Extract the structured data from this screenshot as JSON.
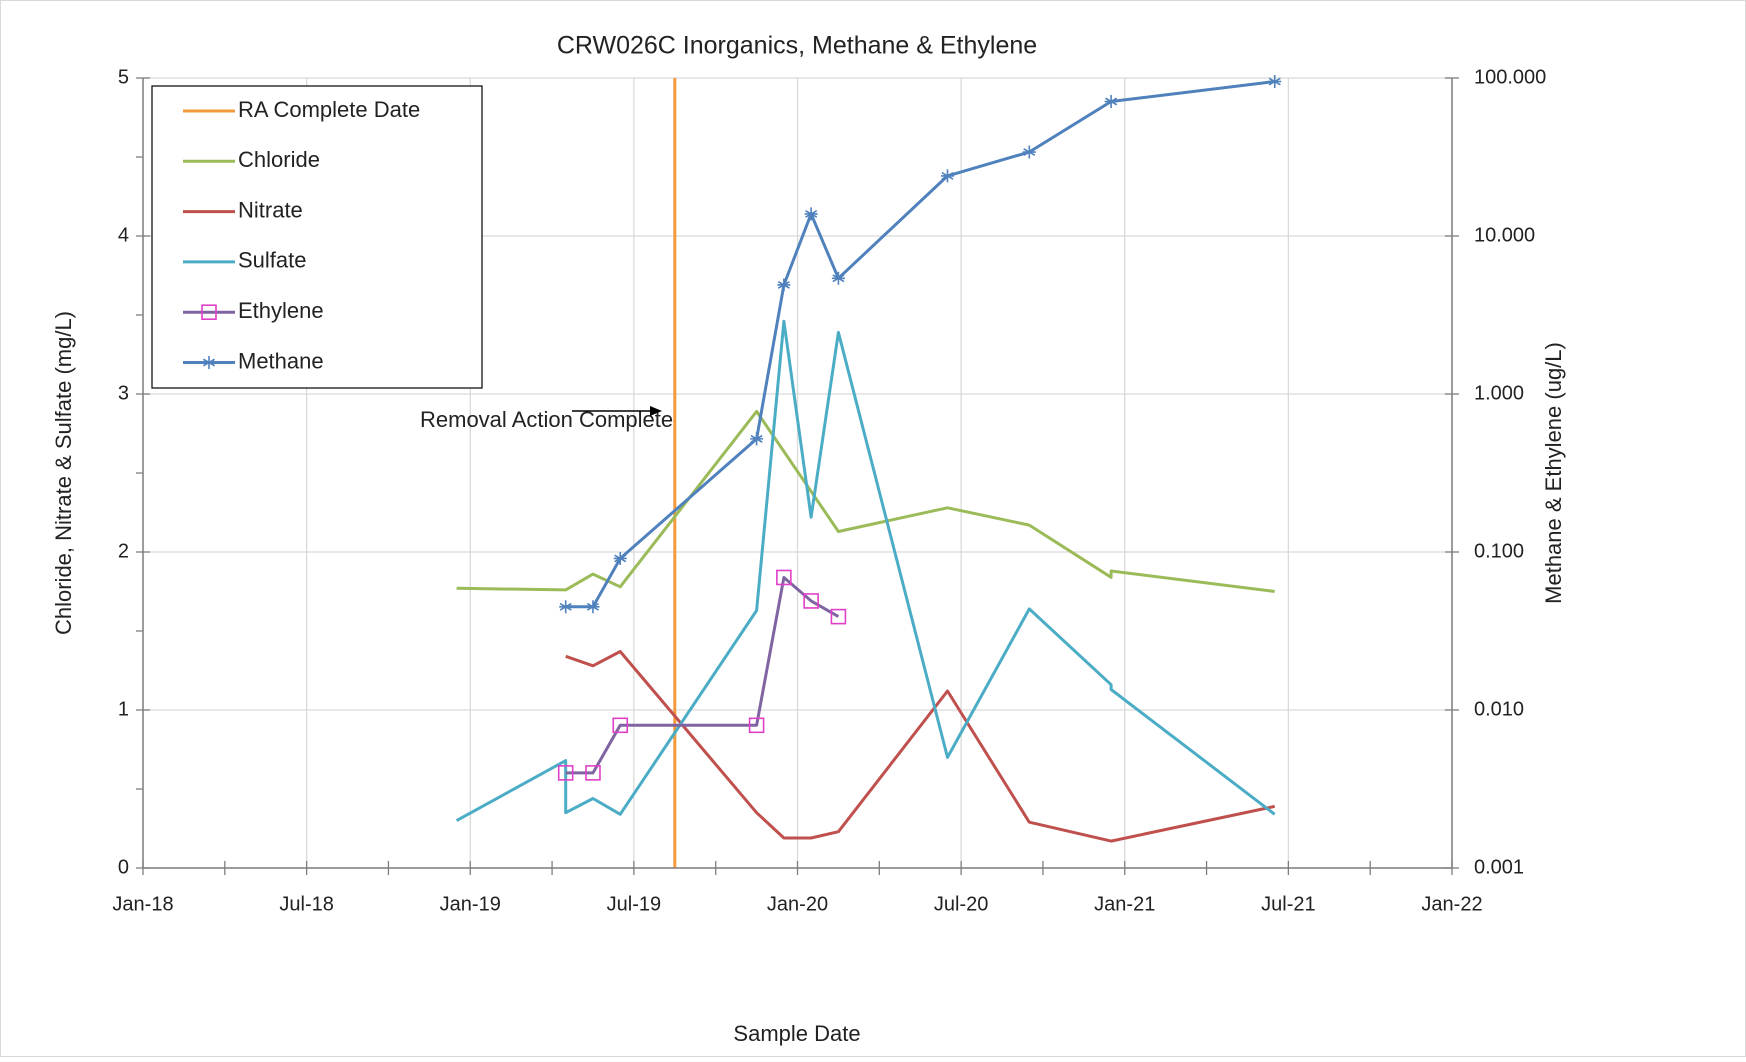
{
  "chart_data": {
    "type": "line",
    "title": "CRW026C Inorganics, Methane & Ethylene",
    "xlabel": "Sample Date",
    "ylabel": "Chloride,  Nitrate  &  Sulfate  (mg/L)",
    "y2label": "Methane &  Ethylene  (ug/L)",
    "annotation": "Removal Action Complete",
    "xlim": [
      "2018-01",
      "2022-01"
    ],
    "xticks": [
      {
        "value": "2018-01",
        "label": "Jan-18"
      },
      {
        "value": "2018-07",
        "label": "Jul-18"
      },
      {
        "value": "2019-01",
        "label": "Jan-19"
      },
      {
        "value": "2019-07",
        "label": "Jul-19"
      },
      {
        "value": "2020-01",
        "label": "Jan-20"
      },
      {
        "value": "2020-07",
        "label": "Jul-20"
      },
      {
        "value": "2021-01",
        "label": "Jan-21"
      },
      {
        "value": "2021-07",
        "label": "Jul-21"
      },
      {
        "value": "2022-01",
        "label": "Jan-22"
      }
    ],
    "ylim": [
      0,
      5
    ],
    "yticks": [
      0,
      1,
      2,
      3,
      4,
      5
    ],
    "y2lim": [
      0.001,
      100
    ],
    "y2log": true,
    "y2ticks": [
      {
        "value": 0.001,
        "label": "0.001"
      },
      {
        "value": 0.01,
        "label": "0.010"
      },
      {
        "value": 0.1,
        "label": "0.100"
      },
      {
        "value": 1,
        "label": "1.000"
      },
      {
        "value": 10,
        "label": "10.000"
      },
      {
        "value": 100,
        "label": "100.000"
      }
    ],
    "grid": true,
    "legend": "upper left",
    "series": [
      {
        "name": "RA Complete Date",
        "color": "#f59a3c",
        "x": [
          "2019-08",
          "2019-08"
        ],
        "values": [
          0,
          5
        ]
      },
      {
        "name": "Chloride",
        "color": "#9bbb59",
        "x": [
          "2018-12",
          "2019-04",
          "2019-05",
          "2019-06",
          "2019-11",
          "2020-02",
          "2020-06",
          "2020-09",
          "2020-12",
          "2020-12",
          "2021-06"
        ],
        "values": [
          1.77,
          1.76,
          1.86,
          1.78,
          2.89,
          2.13,
          2.28,
          2.17,
          1.84,
          1.88,
          1.75
        ]
      },
      {
        "name": "Nitrate",
        "color": "#c0504d",
        "x": [
          "2019-04",
          "2019-05",
          "2019-06",
          "2019-11",
          "2019-12",
          "2020-01",
          "2020-02",
          "2020-06",
          "2020-09",
          "2020-12",
          "2021-06"
        ],
        "values": [
          1.34,
          1.28,
          1.37,
          0.35,
          0.19,
          0.19,
          0.23,
          1.12,
          0.29,
          0.17,
          0.39
        ]
      },
      {
        "name": "Sulfate",
        "color": "#4bacc6",
        "x": [
          "2018-12",
          "2019-04",
          "2019-04",
          "2019-05",
          "2019-06",
          "2019-11",
          "2019-12",
          "2020-01",
          "2020-02",
          "2020-06",
          "2020-09",
          "2020-12",
          "2020-12",
          "2021-06"
        ],
        "values": [
          0.3,
          0.68,
          0.35,
          0.44,
          0.34,
          1.63,
          3.46,
          2.22,
          3.39,
          0.7,
          1.64,
          1.16,
          1.13,
          0.34
        ]
      },
      {
        "name": "Ethylene",
        "color": "#8064a2",
        "marker": "square",
        "marker_color": "#e040c8",
        "axis": "y2",
        "x": [
          "2019-04",
          "2019-05",
          "2019-06",
          "2019-11",
          "2019-12",
          "2020-01",
          "2020-02"
        ],
        "values": [
          0.004,
          0.004,
          0.008,
          0.008,
          0.069,
          0.049,
          0.039
        ]
      },
      {
        "name": "Methane",
        "color": "#4f81bd",
        "marker": "star",
        "marker_color": "#4f81bd",
        "axis": "y2",
        "x": [
          "2019-04",
          "2019-05",
          "2019-06",
          "2019-11",
          "2019-12",
          "2020-01",
          "2020-02",
          "2020-06",
          "2020-09",
          "2020-12",
          "2021-06"
        ],
        "values": [
          0.045,
          0.045,
          0.091,
          0.52,
          4.9,
          13.8,
          5.4,
          24,
          34,
          71,
          95
        ]
      }
    ]
  }
}
